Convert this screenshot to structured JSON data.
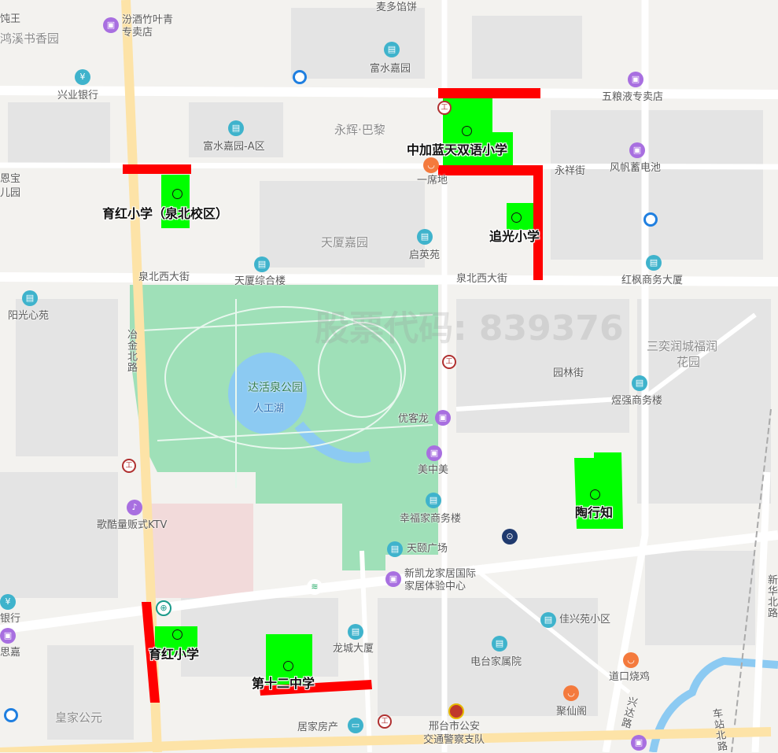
{
  "colors": {
    "background": "#f3f2ef",
    "road": "#ffffff",
    "main_road": "#fde3a7",
    "park": "#9fe0b8",
    "water": "#8ccaf2",
    "school_area": "#00ff00",
    "route_highlight": "#ff0000"
  },
  "watermark": "股票代码: 839376",
  "schools": [
    "中加蓝天双语小学",
    "育红小学（泉北校区）",
    "追光小学",
    "陶行知",
    "育红小学",
    "第十二中学"
  ],
  "roads": [
    "泉北西大街",
    "泉北西大街",
    "冶金北路",
    "永祥街",
    "园林街",
    "兴达路",
    "车站北路",
    "新华北路"
  ],
  "places": [
    "饨王",
    "鸿溪书香园",
    "汾酒竹叶青",
    "专卖店",
    "麦多馅饼",
    "富水嘉园",
    "兴业银行",
    "五粮液专卖店",
    "永辉·巴黎",
    "富水嘉园-A区",
    "风帆蓄电池",
    "一席地",
    "恩宝",
    "儿园",
    "天厦嘉园",
    "启英苑",
    "天厦综合楼",
    "红枫商务大厦",
    "阳光心苑",
    "三奕润城福润",
    "花园",
    "煜强商务楼",
    "优客龙",
    "美中美",
    "歌酷量贩式KTV",
    "幸福家商务楼",
    "天颐广场",
    "新凯龙家居国际",
    "家居体验中心",
    "银行",
    "思嘉",
    "龙城大厦",
    "佳兴苑小区",
    "电台家属院",
    "道口烧鸡",
    "聚仙阁",
    "皇家公元",
    "居家房产",
    "邢台市公安",
    "交通警察支队"
  ],
  "park": {
    "name": "达活泉公园",
    "lake": "人工湖"
  }
}
